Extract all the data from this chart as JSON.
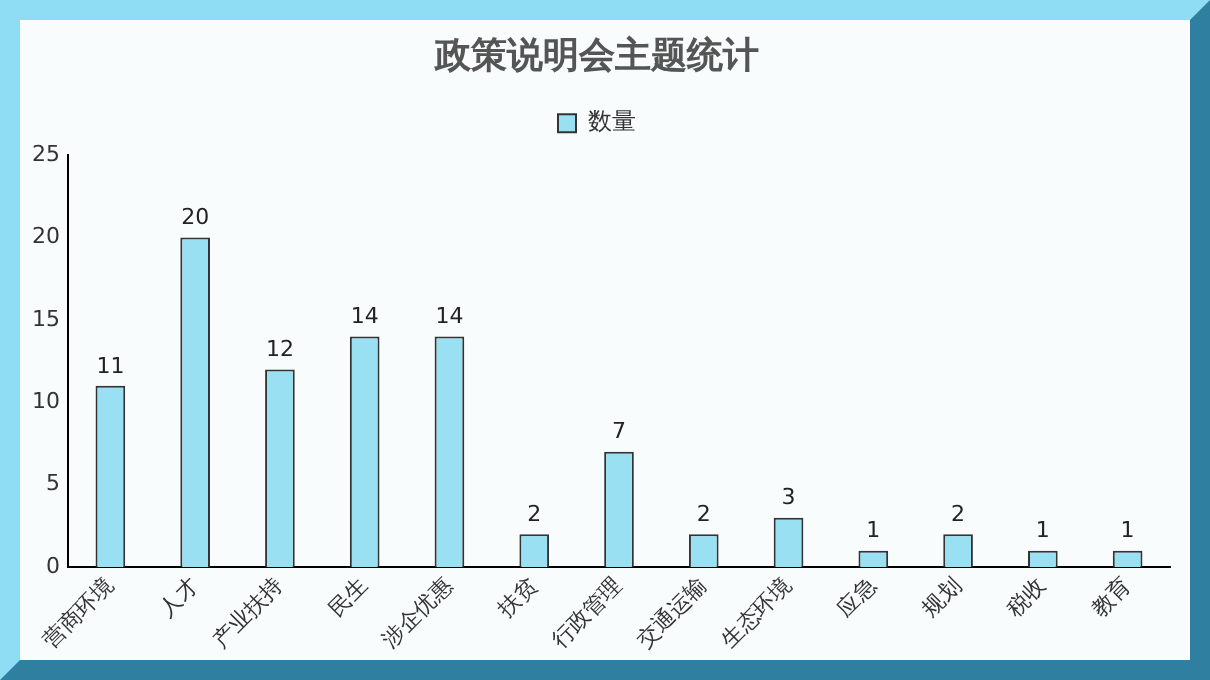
{
  "chart_data": {
    "type": "bar",
    "title": "政策说明会主题统计",
    "categories": [
      "营商环境",
      "人才",
      "产业扶持",
      "民生",
      "涉企优惠",
      "扶贫",
      "行政管理",
      "交通运输",
      "生态环境",
      "应急",
      "规划",
      "税收",
      "教育"
    ],
    "series": [
      {
        "name": "数量",
        "color": "#99e0f2",
        "values": [
          11,
          20,
          12,
          14,
          14,
          2,
          7,
          2,
          3,
          1,
          2,
          1,
          1
        ]
      }
    ],
    "ylim": [
      0,
      25
    ],
    "yticks": [
      0,
      5,
      10,
      15,
      20,
      25
    ],
    "grid": false,
    "legend": "top",
    "data_labels": true
  }
}
